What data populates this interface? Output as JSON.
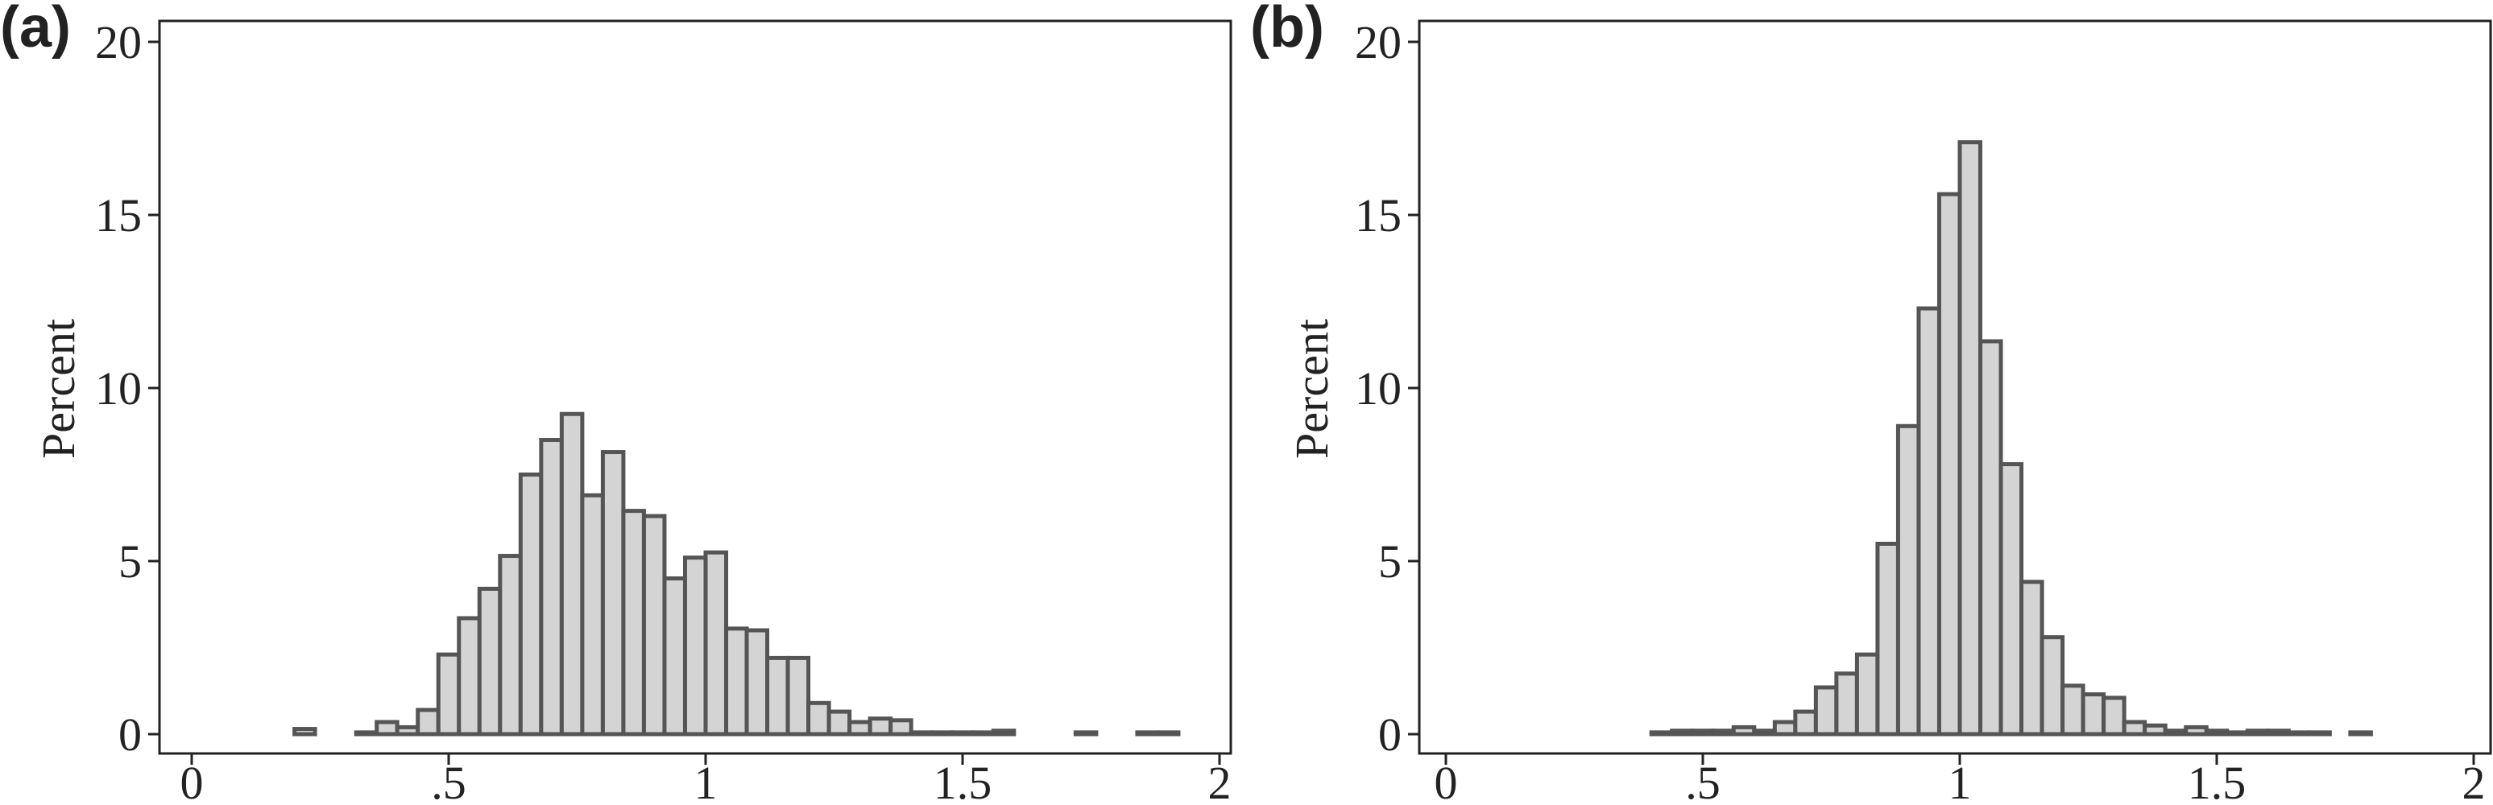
{
  "colors": {
    "bar_fill": "#d4d4d4",
    "bar_stroke": "#555555",
    "axis": "#222222"
  },
  "chart_data": [
    {
      "type": "bar",
      "panel_label": "(a)",
      "ylabel": "Percent",
      "xlim": [
        0,
        2
      ],
      "ylim": [
        0,
        20
      ],
      "xticks": [
        0,
        0.5,
        1,
        1.5,
        2
      ],
      "xtick_labels": [
        "0",
        ".5",
        "1",
        "1.5",
        "2"
      ],
      "yticks": [
        0,
        5,
        10,
        15,
        20
      ],
      "ytick_labels": [
        "0",
        "5",
        "10",
        "15",
        "20"
      ],
      "grid": false,
      "bin_width": 0.04,
      "bin_starts": [
        0.2,
        0.32,
        0.36,
        0.4,
        0.44,
        0.48,
        0.52,
        0.56,
        0.6,
        0.64,
        0.68,
        0.72,
        0.76,
        0.8,
        0.84,
        0.88,
        0.92,
        0.96,
        1.0,
        1.04,
        1.08,
        1.12,
        1.16,
        1.2,
        1.24,
        1.28,
        1.32,
        1.36,
        1.4,
        1.44,
        1.48,
        1.52,
        1.56,
        1.72,
        1.84,
        1.88
      ],
      "values": [
        0.15,
        0.05,
        0.35,
        0.2,
        0.7,
        2.3,
        3.35,
        4.2,
        5.15,
        7.5,
        8.5,
        9.25,
        6.9,
        8.15,
        6.45,
        6.3,
        4.5,
        5.1,
        5.25,
        3.05,
        3.0,
        2.2,
        2.2,
        0.9,
        0.65,
        0.35,
        0.45,
        0.4,
        0.05,
        0.05,
        0.05,
        0.05,
        0.1,
        0.05,
        0.05,
        0.05
      ]
    },
    {
      "type": "bar",
      "panel_label": "(b)",
      "ylabel": "Percent",
      "xlim": [
        0,
        2
      ],
      "ylim": [
        0,
        20
      ],
      "xticks": [
        0,
        0.5,
        1,
        1.5,
        2
      ],
      "xtick_labels": [
        "0",
        ".5",
        "1",
        "1.5",
        "2"
      ],
      "yticks": [
        0,
        5,
        10,
        15,
        20
      ],
      "ytick_labels": [
        "0",
        "5",
        "10",
        "15",
        "20"
      ],
      "grid": false,
      "bin_width": 0.04,
      "bin_starts": [
        0.4,
        0.44,
        0.48,
        0.52,
        0.56,
        0.6,
        0.64,
        0.68,
        0.72,
        0.76,
        0.8,
        0.84,
        0.88,
        0.92,
        0.96,
        1.0,
        1.04,
        1.08,
        1.12,
        1.16,
        1.2,
        1.24,
        1.28,
        1.32,
        1.36,
        1.4,
        1.44,
        1.48,
        1.52,
        1.56,
        1.6,
        1.64,
        1.68,
        1.76
      ],
      "values": [
        0.05,
        0.1,
        0.1,
        0.1,
        0.2,
        0.1,
        0.35,
        0.65,
        1.35,
        1.75,
        2.3,
        5.5,
        8.9,
        12.3,
        15.6,
        17.1,
        11.35,
        7.8,
        4.4,
        2.8,
        1.4,
        1.15,
        1.05,
        0.35,
        0.25,
        0.1,
        0.2,
        0.1,
        0.05,
        0.1,
        0.1,
        0.05,
        0.05,
        0.05
      ]
    }
  ]
}
